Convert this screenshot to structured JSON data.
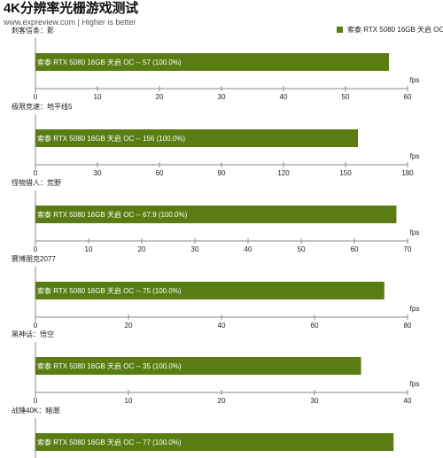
{
  "page": {
    "title": "4K分辨率光栅游戏测试",
    "subtitle": "www.expreview.com | Higher is better"
  },
  "legend": {
    "label": "索泰 RTX 5080 16GB 天启 OC"
  },
  "colors": {
    "bar": "#5a7d13",
    "axis": "#888888",
    "text": "#222222"
  },
  "chart_data": [
    {
      "type": "bar",
      "title": "刺客信条：影",
      "unit": "fps",
      "ylim": [
        0,
        60
      ],
      "ticks": [
        0,
        10,
        20,
        30,
        40,
        50,
        60
      ],
      "series": [
        {
          "name": "索泰 RTX 5080 16GB 天启 OC",
          "value": 57,
          "label": "索泰 RTX 5080 16GB 天启 OC  --  57 (100.0%)"
        }
      ]
    },
    {
      "type": "bar",
      "title": "极限竞速：地平线5",
      "unit": "fps",
      "ylim": [
        0,
        180
      ],
      "ticks": [
        0,
        30,
        60,
        90,
        120,
        150,
        180
      ],
      "series": [
        {
          "name": "索泰 RTX 5080 16GB 天启 OC",
          "value": 156,
          "label": "索泰 RTX 5080 16GB 天启 OC  --  156 (100.0%)"
        }
      ]
    },
    {
      "type": "bar",
      "title": "怪物猎人：荒野",
      "unit": "fps",
      "ylim": [
        0,
        70
      ],
      "ticks": [
        0,
        10,
        20,
        30,
        40,
        50,
        60,
        70
      ],
      "series": [
        {
          "name": "索泰 RTX 5080 16GB 天启 OC",
          "value": 67.9,
          "label": "索泰 RTX 5080 16GB 天启 OC  --  67.9 (100.0%)"
        }
      ]
    },
    {
      "type": "bar",
      "title": "赛博朋克2077",
      "unit": "fps",
      "ylim": [
        0,
        80
      ],
      "ticks": [
        0,
        20,
        40,
        60,
        80
      ],
      "series": [
        {
          "name": "索泰 RTX 5080 16GB 天启 OC",
          "value": 75,
          "label": "索泰 RTX 5080 16GB 天启 OC  --  75 (100.0%)"
        }
      ]
    },
    {
      "type": "bar",
      "title": "黑神话：悟空",
      "unit": "fps",
      "ylim": [
        0,
        40
      ],
      "ticks": [
        0,
        10,
        20,
        30,
        40
      ],
      "series": [
        {
          "name": "索泰 RTX 5080 16GB 天启 OC",
          "value": 35,
          "label": "索泰 RTX 5080 16GB 天启 OC  --  35 (100.0%)"
        }
      ]
    },
    {
      "type": "bar",
      "title": "战锤40K：暗潮",
      "unit": "fps",
      "ylim": [
        0,
        80
      ],
      "ticks": [],
      "series": [
        {
          "name": "索泰 RTX 5080 16GB 天启 OC",
          "value": 77,
          "label": "索泰 RTX 5080 16GB 天启 OC  --  77 (100.0%)"
        }
      ]
    }
  ]
}
